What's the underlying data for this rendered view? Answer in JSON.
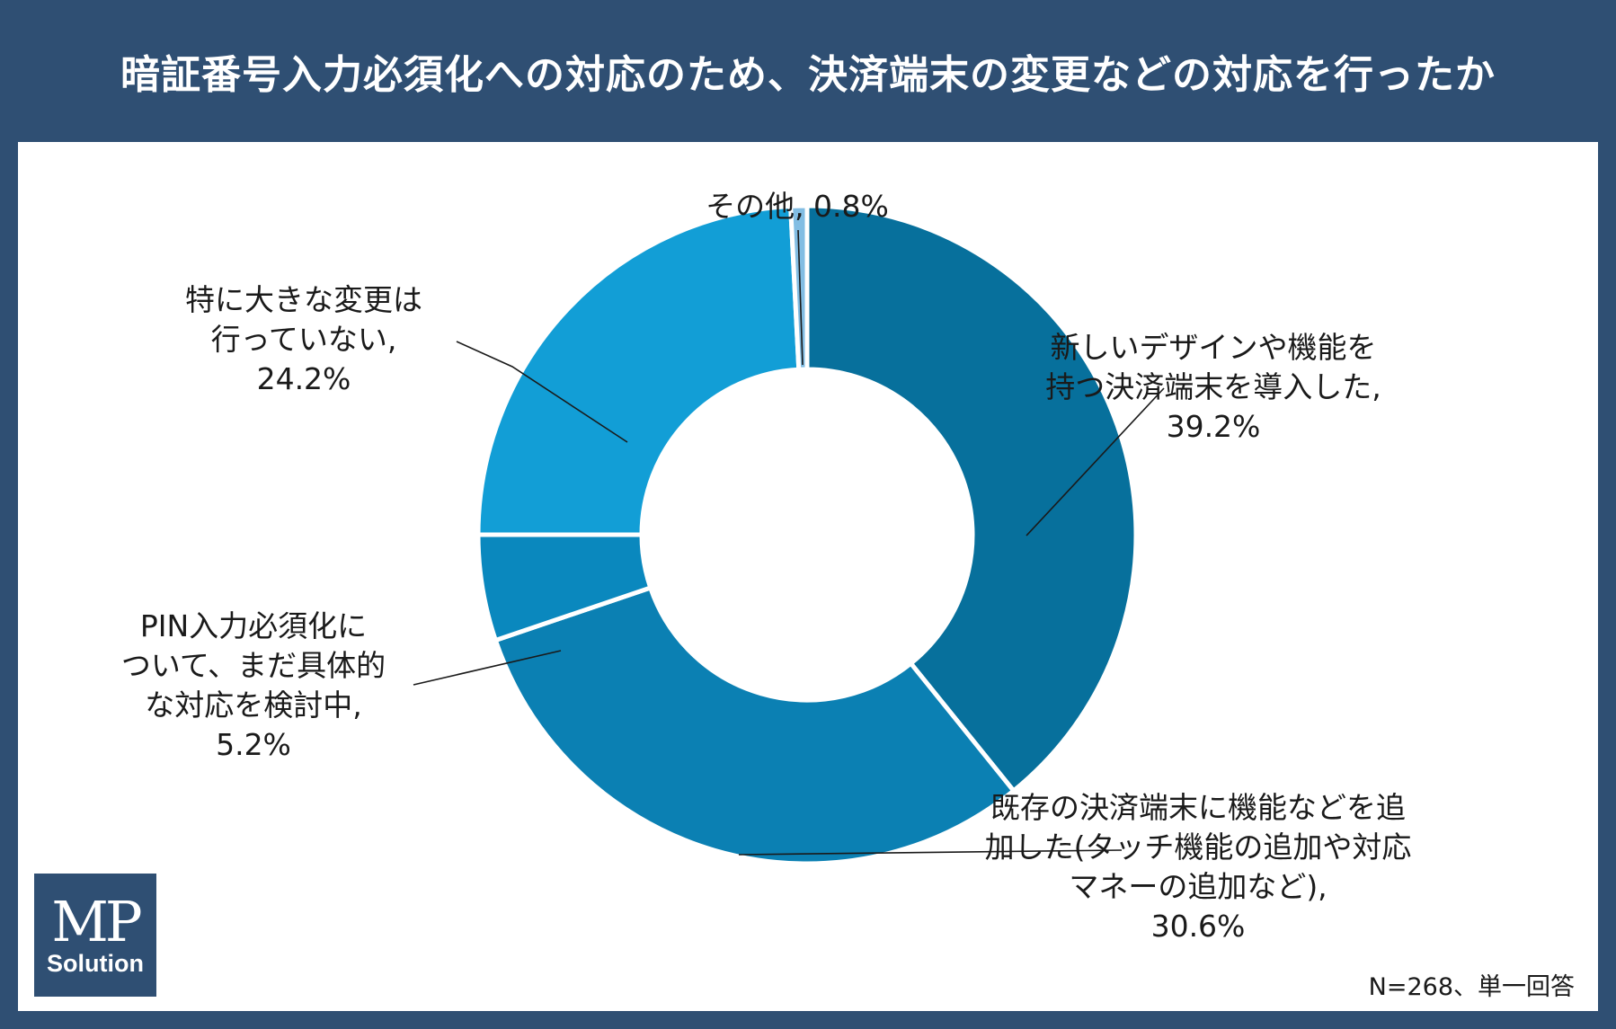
{
  "header": {
    "title": "暗証番号入力必須化への対応のため、決済端末の変更などの対応を行ったか"
  },
  "note": "N=268、単一回答",
  "logo": {
    "main": "MP",
    "sub": "Solution"
  },
  "colors": {
    "frame": "#2f4f73",
    "panel": "#ffffff",
    "leader": "#1a1a1a"
  },
  "chart_data": {
    "type": "pie",
    "variant": "donut",
    "title": "暗証番号入力必須化への対応のため、決済端末の変更などの対応を行ったか",
    "slices": [
      {
        "name": "新しいデザインや機能を持つ決済端末を導入した",
        "value": 39.2,
        "color": "#07709c",
        "label_lines": [
          "新しいデザインや機能を",
          "持つ決済端末を導入した,",
          "39.2%"
        ]
      },
      {
        "name": "既存の決済端末に機能などを追加した(タッチ機能の追加や対応マネーの追加など)",
        "value": 30.6,
        "color": "#0b80b3",
        "label_lines": [
          "既存の決済端末に機能などを追",
          "加した(タッチ機能の追加や対応",
          "マネーの追加など),",
          "30.6%"
        ]
      },
      {
        "name": "PIN入力必須化について、まだ具体的な対応を検討中",
        "value": 5.2,
        "color": "#0a88be",
        "label_lines": [
          "PIN入力必須化に",
          "ついて、まだ具体的",
          "な対応を検討中,",
          "5.2%"
        ]
      },
      {
        "name": "特に大きな変更は行っていない",
        "value": 24.2,
        "color": "#129ed6",
        "label_lines": [
          "特に大きな変更は",
          "行っていない,",
          "24.2%"
        ]
      },
      {
        "name": "その他",
        "value": 0.8,
        "color": "#82bde3",
        "label_lines": [
          "その他, 0.8%"
        ]
      }
    ]
  }
}
